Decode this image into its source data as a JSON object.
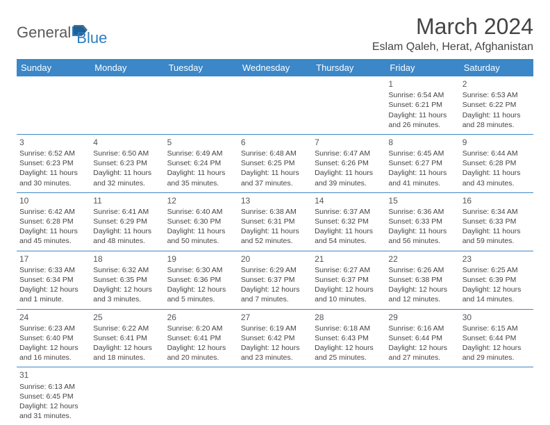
{
  "logo": {
    "general": "General",
    "blue": "Blue"
  },
  "header": {
    "month_title": "March 2024",
    "location": "Eslam Qaleh, Herat, Afghanistan"
  },
  "colors": {
    "header_bg": "#3b87c8",
    "header_text": "#ffffff",
    "border": "#3b87c8",
    "logo_gray": "#5a5a5a",
    "logo_blue": "#2d7dc0"
  },
  "weekdays": [
    "Sunday",
    "Monday",
    "Tuesday",
    "Wednesday",
    "Thursday",
    "Friday",
    "Saturday"
  ],
  "weeks": [
    [
      null,
      null,
      null,
      null,
      null,
      {
        "n": "1",
        "sr": "Sunrise: 6:54 AM",
        "ss": "Sunset: 6:21 PM",
        "dl": "Daylight: 11 hours and 26 minutes."
      },
      {
        "n": "2",
        "sr": "Sunrise: 6:53 AM",
        "ss": "Sunset: 6:22 PM",
        "dl": "Daylight: 11 hours and 28 minutes."
      }
    ],
    [
      {
        "n": "3",
        "sr": "Sunrise: 6:52 AM",
        "ss": "Sunset: 6:23 PM",
        "dl": "Daylight: 11 hours and 30 minutes."
      },
      {
        "n": "4",
        "sr": "Sunrise: 6:50 AM",
        "ss": "Sunset: 6:23 PM",
        "dl": "Daylight: 11 hours and 32 minutes."
      },
      {
        "n": "5",
        "sr": "Sunrise: 6:49 AM",
        "ss": "Sunset: 6:24 PM",
        "dl": "Daylight: 11 hours and 35 minutes."
      },
      {
        "n": "6",
        "sr": "Sunrise: 6:48 AM",
        "ss": "Sunset: 6:25 PM",
        "dl": "Daylight: 11 hours and 37 minutes."
      },
      {
        "n": "7",
        "sr": "Sunrise: 6:47 AM",
        "ss": "Sunset: 6:26 PM",
        "dl": "Daylight: 11 hours and 39 minutes."
      },
      {
        "n": "8",
        "sr": "Sunrise: 6:45 AM",
        "ss": "Sunset: 6:27 PM",
        "dl": "Daylight: 11 hours and 41 minutes."
      },
      {
        "n": "9",
        "sr": "Sunrise: 6:44 AM",
        "ss": "Sunset: 6:28 PM",
        "dl": "Daylight: 11 hours and 43 minutes."
      }
    ],
    [
      {
        "n": "10",
        "sr": "Sunrise: 6:42 AM",
        "ss": "Sunset: 6:28 PM",
        "dl": "Daylight: 11 hours and 45 minutes."
      },
      {
        "n": "11",
        "sr": "Sunrise: 6:41 AM",
        "ss": "Sunset: 6:29 PM",
        "dl": "Daylight: 11 hours and 48 minutes."
      },
      {
        "n": "12",
        "sr": "Sunrise: 6:40 AM",
        "ss": "Sunset: 6:30 PM",
        "dl": "Daylight: 11 hours and 50 minutes."
      },
      {
        "n": "13",
        "sr": "Sunrise: 6:38 AM",
        "ss": "Sunset: 6:31 PM",
        "dl": "Daylight: 11 hours and 52 minutes."
      },
      {
        "n": "14",
        "sr": "Sunrise: 6:37 AM",
        "ss": "Sunset: 6:32 PM",
        "dl": "Daylight: 11 hours and 54 minutes."
      },
      {
        "n": "15",
        "sr": "Sunrise: 6:36 AM",
        "ss": "Sunset: 6:33 PM",
        "dl": "Daylight: 11 hours and 56 minutes."
      },
      {
        "n": "16",
        "sr": "Sunrise: 6:34 AM",
        "ss": "Sunset: 6:33 PM",
        "dl": "Daylight: 11 hours and 59 minutes."
      }
    ],
    [
      {
        "n": "17",
        "sr": "Sunrise: 6:33 AM",
        "ss": "Sunset: 6:34 PM",
        "dl": "Daylight: 12 hours and 1 minute."
      },
      {
        "n": "18",
        "sr": "Sunrise: 6:32 AM",
        "ss": "Sunset: 6:35 PM",
        "dl": "Daylight: 12 hours and 3 minutes."
      },
      {
        "n": "19",
        "sr": "Sunrise: 6:30 AM",
        "ss": "Sunset: 6:36 PM",
        "dl": "Daylight: 12 hours and 5 minutes."
      },
      {
        "n": "20",
        "sr": "Sunrise: 6:29 AM",
        "ss": "Sunset: 6:37 PM",
        "dl": "Daylight: 12 hours and 7 minutes."
      },
      {
        "n": "21",
        "sr": "Sunrise: 6:27 AM",
        "ss": "Sunset: 6:37 PM",
        "dl": "Daylight: 12 hours and 10 minutes."
      },
      {
        "n": "22",
        "sr": "Sunrise: 6:26 AM",
        "ss": "Sunset: 6:38 PM",
        "dl": "Daylight: 12 hours and 12 minutes."
      },
      {
        "n": "23",
        "sr": "Sunrise: 6:25 AM",
        "ss": "Sunset: 6:39 PM",
        "dl": "Daylight: 12 hours and 14 minutes."
      }
    ],
    [
      {
        "n": "24",
        "sr": "Sunrise: 6:23 AM",
        "ss": "Sunset: 6:40 PM",
        "dl": "Daylight: 12 hours and 16 minutes."
      },
      {
        "n": "25",
        "sr": "Sunrise: 6:22 AM",
        "ss": "Sunset: 6:41 PM",
        "dl": "Daylight: 12 hours and 18 minutes."
      },
      {
        "n": "26",
        "sr": "Sunrise: 6:20 AM",
        "ss": "Sunset: 6:41 PM",
        "dl": "Daylight: 12 hours and 20 minutes."
      },
      {
        "n": "27",
        "sr": "Sunrise: 6:19 AM",
        "ss": "Sunset: 6:42 PM",
        "dl": "Daylight: 12 hours and 23 minutes."
      },
      {
        "n": "28",
        "sr": "Sunrise: 6:18 AM",
        "ss": "Sunset: 6:43 PM",
        "dl": "Daylight: 12 hours and 25 minutes."
      },
      {
        "n": "29",
        "sr": "Sunrise: 6:16 AM",
        "ss": "Sunset: 6:44 PM",
        "dl": "Daylight: 12 hours and 27 minutes."
      },
      {
        "n": "30",
        "sr": "Sunrise: 6:15 AM",
        "ss": "Sunset: 6:44 PM",
        "dl": "Daylight: 12 hours and 29 minutes."
      }
    ],
    [
      {
        "n": "31",
        "sr": "Sunrise: 6:13 AM",
        "ss": "Sunset: 6:45 PM",
        "dl": "Daylight: 12 hours and 31 minutes."
      },
      null,
      null,
      null,
      null,
      null,
      null
    ]
  ]
}
